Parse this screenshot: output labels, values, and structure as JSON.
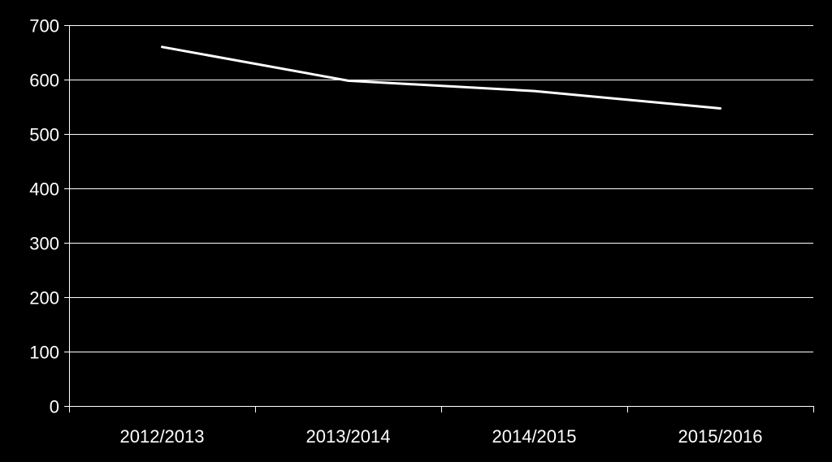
{
  "colors": {
    "background": "#000000",
    "line": "#ffffff",
    "grid": "#ffffff",
    "axis": "#ffffff",
    "text": "#ffffff"
  },
  "chart_data": {
    "type": "line",
    "title": "",
    "xlabel": "",
    "ylabel": "",
    "categories": [
      "2012/2013",
      "2013/2014",
      "2014/2015",
      "2015/2016"
    ],
    "series": [
      {
        "values": [
          660,
          598,
          579,
          547
        ]
      }
    ],
    "ylim": [
      0,
      700
    ],
    "yticks": [
      0,
      100,
      200,
      300,
      400,
      500,
      600,
      700
    ],
    "grid": "horizontal",
    "legend": "none"
  }
}
